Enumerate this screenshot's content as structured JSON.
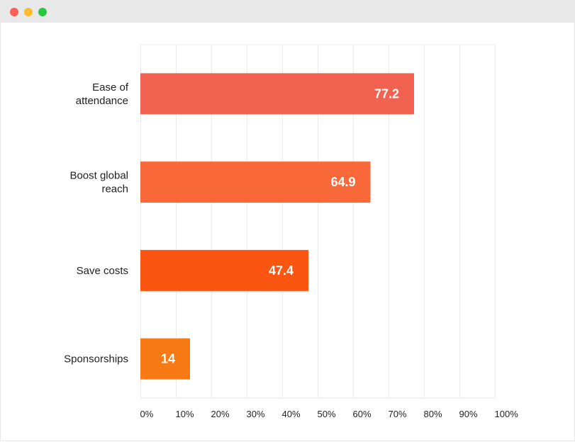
{
  "window": {
    "controls": [
      {
        "name": "close",
        "color": "#fe5f57"
      },
      {
        "name": "minimize",
        "color": "#febc2e"
      },
      {
        "name": "maximize",
        "color": "#28c840"
      }
    ]
  },
  "chart_data": {
    "type": "bar",
    "orientation": "horizontal",
    "categories": [
      [
        "Ease of",
        "attendance"
      ],
      [
        "Boost global",
        "reach"
      ],
      [
        "Save costs"
      ],
      [
        "Sponsorships"
      ]
    ],
    "values": [
      77.2,
      64.9,
      47.4,
      14
    ],
    "value_labels": [
      "77.2",
      "64.9",
      "47.4",
      "14"
    ],
    "colors": [
      "#f26250",
      "#f96838",
      "#fa5612",
      "#f77a15"
    ],
    "xlim": [
      0,
      100
    ],
    "xticks": [
      "0%",
      "10%",
      "20%",
      "30%",
      "40%",
      "50%",
      "60%",
      "70%",
      "80%",
      "90%",
      "100%"
    ],
    "grid": "vertical",
    "title": "",
    "xlabel": "",
    "ylabel": ""
  }
}
